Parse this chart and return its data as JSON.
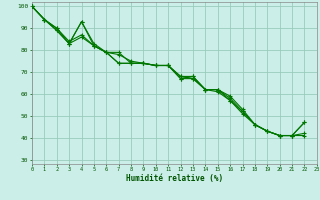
{
  "xlabel": "Humidité relative (%)",
  "xlim": [
    0,
    23
  ],
  "ylim": [
    28,
    102
  ],
  "yticks": [
    30,
    40,
    50,
    60,
    70,
    80,
    90,
    100
  ],
  "xticks": [
    0,
    1,
    2,
    3,
    4,
    5,
    6,
    7,
    8,
    9,
    10,
    11,
    12,
    13,
    14,
    15,
    16,
    17,
    18,
    19,
    20,
    21,
    22,
    23
  ],
  "bg_color": "#cceee8",
  "grid_color": "#99ccbb",
  "line_color": "#007700",
  "lines": [
    [
      100,
      94,
      90,
      83,
      93,
      83,
      79,
      79,
      74,
      74,
      73,
      73,
      68,
      68,
      62,
      62,
      58,
      52,
      46,
      43,
      41,
      41,
      47
    ],
    [
      100,
      94,
      90,
      84,
      87,
      82,
      79,
      74,
      74,
      74,
      73,
      73,
      67,
      67,
      62,
      62,
      59,
      53,
      46,
      43,
      41,
      41,
      41
    ],
    [
      100,
      94,
      89,
      83,
      86,
      82,
      79,
      78,
      75,
      74,
      73,
      73,
      68,
      67,
      62,
      61,
      57,
      52,
      46,
      43,
      41,
      41,
      42
    ],
    [
      100,
      94,
      89,
      83,
      93,
      82,
      79,
      74,
      74,
      74,
      73,
      73,
      67,
      68,
      62,
      62,
      57,
      51,
      46,
      43,
      41,
      41,
      47
    ]
  ]
}
